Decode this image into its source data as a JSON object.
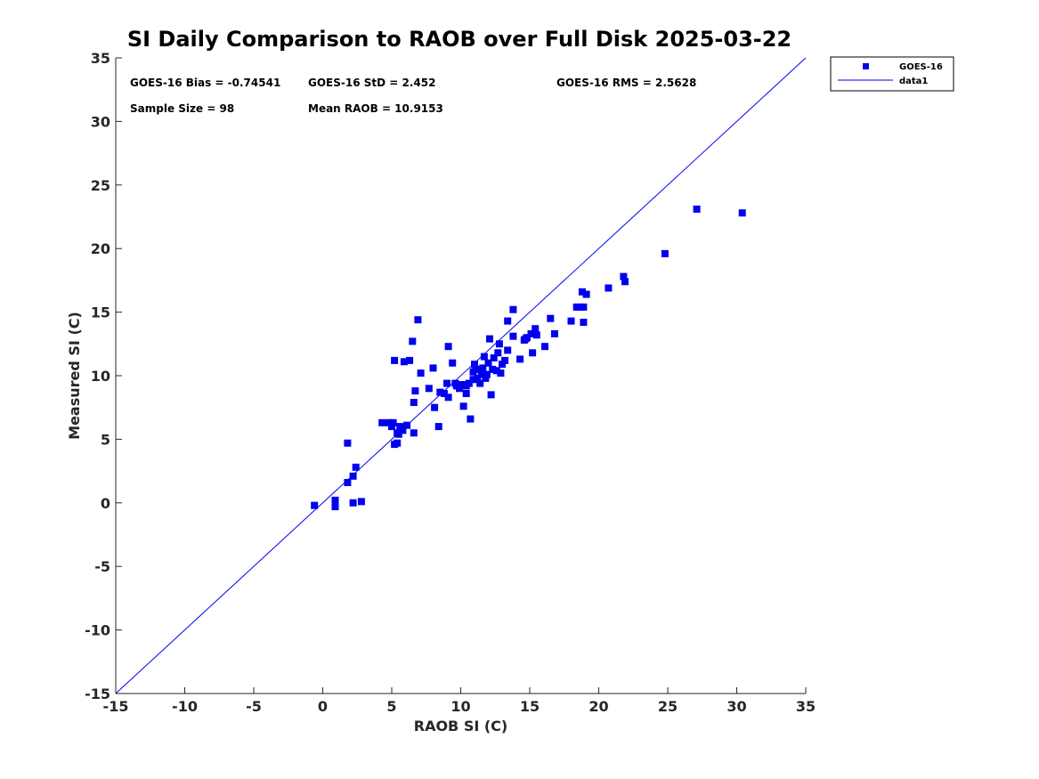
{
  "chart_data": {
    "type": "scatter",
    "title": "SI Daily Comparison to RAOB over Full Disk 2025-03-22",
    "xlabel": "RAOB SI (C)",
    "ylabel": "Measured SI (C)",
    "xlim": [
      -15,
      35
    ],
    "ylim": [
      -15,
      35
    ],
    "xticks": [
      "-15",
      "-10",
      "-5",
      "0",
      "5",
      "10",
      "15",
      "20",
      "25",
      "30",
      "35"
    ],
    "yticks": [
      "-15",
      "-10",
      "-5",
      "0",
      "5",
      "10",
      "15",
      "20",
      "25",
      "30",
      "35"
    ],
    "grid": false,
    "legend_position": "outside-top-right",
    "stats": {
      "bias": "GOES-16 Bias = -0.74541",
      "std": "GOES-16 StD = 2.452",
      "rms": "GOES-16 RMS = 2.5628",
      "sample": "Sample Size = 98",
      "mean": "Mean RAOB = 10.9153"
    },
    "series": [
      {
        "name": "GOES-16",
        "kind": "scatter",
        "color": "#0000ee",
        "marker": "square",
        "points": [
          [
            -0.6,
            -0.2
          ],
          [
            0.9,
            0.2
          ],
          [
            0.9,
            -0.3
          ],
          [
            2.2,
            0.0
          ],
          [
            2.8,
            0.1
          ],
          [
            1.8,
            1.6
          ],
          [
            2.2,
            2.1
          ],
          [
            2.4,
            2.8
          ],
          [
            1.8,
            4.7
          ],
          [
            4.3,
            6.3
          ],
          [
            4.8,
            6.3
          ],
          [
            5.0,
            6.0
          ],
          [
            5.1,
            6.3
          ],
          [
            5.2,
            4.6
          ],
          [
            5.4,
            4.7
          ],
          [
            5.4,
            5.5
          ],
          [
            5.6,
            6.0
          ],
          [
            5.8,
            5.7
          ],
          [
            6.1,
            6.1
          ],
          [
            5.5,
            5.4
          ],
          [
            6.6,
            5.5
          ],
          [
            5.2,
            11.2
          ],
          [
            5.9,
            11.1
          ],
          [
            6.3,
            11.2
          ],
          [
            6.5,
            12.7
          ],
          [
            6.9,
            14.4
          ],
          [
            7.1,
            10.2
          ],
          [
            6.6,
            7.9
          ],
          [
            6.7,
            8.8
          ],
          [
            7.7,
            9.0
          ],
          [
            8.0,
            10.6
          ],
          [
            8.1,
            7.5
          ],
          [
            8.4,
            6.0
          ],
          [
            8.5,
            8.7
          ],
          [
            8.8,
            8.6
          ],
          [
            9.0,
            9.4
          ],
          [
            9.1,
            8.3
          ],
          [
            9.1,
            12.3
          ],
          [
            9.4,
            11.0
          ],
          [
            9.6,
            9.4
          ],
          [
            9.9,
            9.0
          ],
          [
            10.1,
            9.3
          ],
          [
            10.2,
            7.6
          ],
          [
            10.4,
            8.6
          ],
          [
            10.4,
            9.2
          ],
          [
            10.6,
            9.4
          ],
          [
            10.7,
            6.6
          ],
          [
            10.9,
            9.7
          ],
          [
            11.0,
            10.9
          ],
          [
            11.1,
            10.5
          ],
          [
            11.2,
            9.8
          ],
          [
            11.4,
            9.4
          ],
          [
            11.5,
            10.1
          ],
          [
            11.7,
            11.5
          ],
          [
            11.8,
            9.8
          ],
          [
            12.0,
            11.0
          ],
          [
            12.1,
            12.9
          ],
          [
            12.2,
            8.5
          ],
          [
            12.3,
            10.5
          ],
          [
            12.4,
            11.4
          ],
          [
            12.7,
            11.8
          ],
          [
            12.8,
            12.5
          ],
          [
            12.9,
            10.2
          ],
          [
            13.0,
            10.9
          ],
          [
            13.4,
            12.0
          ],
          [
            13.4,
            14.3
          ],
          [
            13.8,
            13.1
          ],
          [
            13.8,
            15.2
          ],
          [
            14.3,
            11.3
          ],
          [
            14.6,
            12.8
          ],
          [
            14.8,
            13.0
          ],
          [
            15.1,
            13.3
          ],
          [
            15.2,
            11.8
          ],
          [
            15.4,
            13.7
          ],
          [
            15.5,
            13.2
          ],
          [
            16.1,
            12.3
          ],
          [
            16.5,
            14.5
          ],
          [
            16.8,
            13.3
          ],
          [
            18.0,
            14.3
          ],
          [
            18.4,
            15.4
          ],
          [
            18.7,
            15.4
          ],
          [
            18.8,
            16.6
          ],
          [
            18.9,
            15.4
          ],
          [
            18.9,
            14.2
          ],
          [
            19.1,
            16.4
          ],
          [
            20.7,
            16.9
          ],
          [
            21.8,
            17.8
          ],
          [
            21.9,
            17.4
          ],
          [
            24.8,
            19.6
          ],
          [
            27.1,
            23.1
          ],
          [
            30.4,
            22.8
          ],
          [
            11.6,
            10.6
          ],
          [
            12.6,
            10.4
          ],
          [
            9.7,
            9.2
          ],
          [
            10.9,
            10.3
          ],
          [
            11.9,
            10.1
          ],
          [
            13.2,
            11.2
          ],
          [
            14.7,
            12.9
          ]
        ]
      },
      {
        "name": "data1",
        "kind": "line",
        "color": "#0000ee",
        "x": [
          -15,
          35
        ],
        "y": [
          -15,
          35
        ]
      }
    ]
  }
}
